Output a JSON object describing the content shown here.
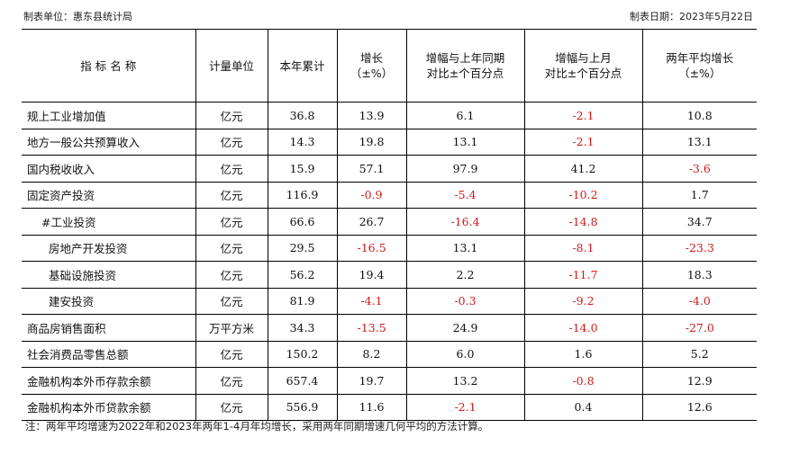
{
  "header": {
    "left": "制表单位：惠东县统计局",
    "right": "制表日期：2023年5月22日"
  },
  "columns": [
    [
      "指 标 名 称"
    ],
    [
      "计量单位"
    ],
    [
      "本年累计"
    ],
    [
      "增长",
      "（±%）"
    ],
    [
      "增幅与上年同期",
      "对比±个百分点"
    ],
    [
      "增幅与上月",
      "对比±个百分点"
    ],
    [
      "两年平均增长",
      "（±%）"
    ]
  ],
  "rows": [
    {
      "name": "规上工业增加值",
      "indent": 0,
      "unit": "亿元",
      "values": [
        "36.8",
        "13.9",
        "6.1",
        "-2.1",
        "10.8"
      ]
    },
    {
      "name": "地方一般公共预算收入",
      "indent": 0,
      "unit": "亿元",
      "values": [
        "14.3",
        "19.8",
        "13.1",
        "-2.1",
        "13.1"
      ]
    },
    {
      "name": "国内税收收入",
      "indent": 0,
      "unit": "亿元",
      "values": [
        "15.9",
        "57.1",
        "97.9",
        "41.2",
        "-3.6"
      ]
    },
    {
      "name": "固定资产投资",
      "indent": 0,
      "unit": "亿元",
      "values": [
        "116.9",
        "-0.9",
        "-5.4",
        "-10.2",
        "1.7"
      ]
    },
    {
      "name": "#工业投资",
      "indent": 1,
      "unit": "亿元",
      "values": [
        "66.6",
        "26.7",
        "-16.4",
        "-14.8",
        "34.7"
      ]
    },
    {
      "name": "房地产开发投资",
      "indent": 2,
      "unit": "亿元",
      "values": [
        "29.5",
        "-16.5",
        "13.1",
        "-8.1",
        "-23.3"
      ]
    },
    {
      "name": "基础设施投资",
      "indent": 2,
      "unit": "亿元",
      "values": [
        "56.2",
        "19.4",
        "2.2",
        "-11.7",
        "18.3"
      ]
    },
    {
      "name": "建安投资",
      "indent": 2,
      "unit": "亿元",
      "values": [
        "81.9",
        "-4.1",
        "-0.3",
        "-9.2",
        "-4.0"
      ]
    },
    {
      "name": "商品房销售面积",
      "indent": 0,
      "unit": "万平方米",
      "values": [
        "34.3",
        "-13.5",
        "24.9",
        "-14.0",
        "-27.0"
      ]
    },
    {
      "name": "社会消费品零售总额",
      "indent": 0,
      "unit": "亿元",
      "values": [
        "150.2",
        "8.2",
        "6.0",
        "1.6",
        "5.2"
      ]
    },
    {
      "name": "金融机构本外币存款余额",
      "indent": 0,
      "unit": "亿元",
      "values": [
        "657.4",
        "19.7",
        "13.2",
        "-0.8",
        "12.9"
      ]
    },
    {
      "name": "金融机构本外币贷款余额",
      "indent": 0,
      "unit": "亿元",
      "values": [
        "556.9",
        "11.6",
        "-2.1",
        "0.4",
        "12.6"
      ]
    }
  ],
  "note": "注：两年平均增速为2022年和2023年两年1-4月年均增长，采用两年同期增速几何平均的方法计算。",
  "colors": {
    "negative": "#d11a1a",
    "text": "#111111"
  }
}
